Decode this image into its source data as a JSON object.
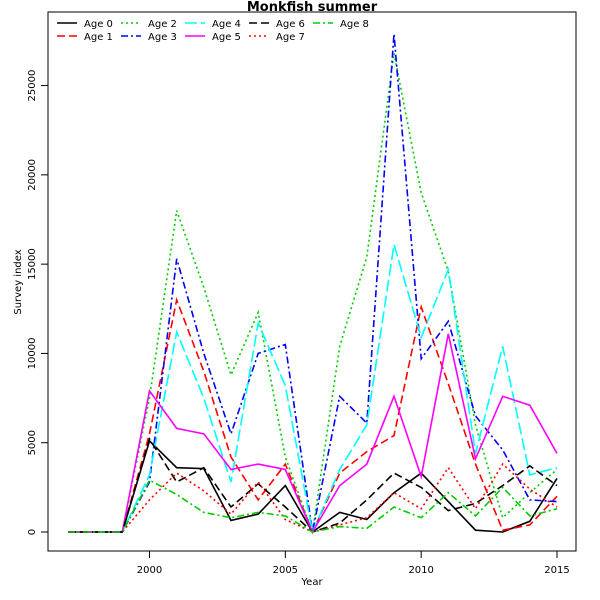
{
  "chart_data": {
    "type": "line",
    "title": "Monkfish summer",
    "xlabel": "Year",
    "ylabel": "Survey index",
    "x": [
      1997,
      1998,
      1999,
      2000,
      2001,
      2002,
      2003,
      2004,
      2005,
      2006,
      2007,
      2008,
      2009,
      2010,
      2011,
      2012,
      2013,
      2014,
      2015
    ],
    "xlim": [
      1997,
      2015
    ],
    "ylim": [
      0,
      28000
    ],
    "x_ticks": [
      "2000",
      "2005",
      "2010",
      "2015"
    ],
    "y_ticks": [
      "0",
      "5000",
      "10000",
      "15000",
      "20000",
      "25000"
    ],
    "legend_position": "top",
    "series": [
      {
        "name": "Age 0",
        "color": "#000000",
        "dash": "solid",
        "values": [
          0,
          0,
          0,
          5100,
          3600,
          3550,
          650,
          1000,
          2600,
          0,
          1100,
          700,
          2200,
          3300,
          1700,
          100,
          0,
          600,
          3000
        ]
      },
      {
        "name": "Age 1",
        "color": "#ff0000",
        "dash": "dashed",
        "values": [
          0,
          0,
          0,
          5500,
          13000,
          9000,
          4200,
          1800,
          3800,
          0,
          3300,
          4500,
          5400,
          12600,
          8300,
          3800,
          100,
          400,
          2000
        ]
      },
      {
        "name": "Age 2",
        "color": "#00cd00",
        "dash": "dotted",
        "values": [
          0,
          0,
          0,
          7500,
          18000,
          13700,
          8800,
          12300,
          4200,
          0,
          10400,
          15400,
          26800,
          19000,
          14600,
          6000,
          800,
          2200,
          3500
        ]
      },
      {
        "name": "Age 3",
        "color": "#0000ff",
        "dash": "dotdash",
        "values": [
          0,
          0,
          0,
          2800,
          15300,
          10000,
          5500,
          10000,
          10500,
          0,
          7600,
          6100,
          27900,
          9700,
          11800,
          6500,
          4600,
          1800,
          1700
        ]
      },
      {
        "name": "Age 4",
        "color": "#00ffff",
        "dash": "longdash",
        "values": [
          0,
          0,
          0,
          3200,
          11200,
          7500,
          2800,
          11700,
          8200,
          0,
          3500,
          6000,
          16100,
          10900,
          14700,
          4400,
          10400,
          3200,
          3600
        ]
      },
      {
        "name": "Age 5",
        "color": "#ff00ff",
        "dash": "solid",
        "values": [
          0,
          0,
          0,
          7900,
          5800,
          5500,
          3500,
          3800,
          3500,
          0,
          2600,
          3800,
          7600,
          3100,
          11100,
          4100,
          7600,
          7100,
          4400
        ]
      },
      {
        "name": "Age 6",
        "color": "#000000",
        "dash": "dashed",
        "values": [
          0,
          0,
          0,
          5200,
          2800,
          3600,
          1400,
          2700,
          1400,
          0,
          500,
          1800,
          3300,
          2500,
          1200,
          1600,
          2600,
          3700,
          2600
        ]
      },
      {
        "name": "Age 7",
        "color": "#ff0000",
        "dash": "dotted",
        "values": [
          0,
          0,
          0,
          1800,
          3300,
          2300,
          1000,
          2800,
          700,
          0,
          400,
          800,
          2200,
          1300,
          3600,
          1300,
          3800,
          2400,
          1400
        ]
      },
      {
        "name": "Age 8",
        "color": "#00cd00",
        "dash": "dotdash",
        "values": [
          0,
          0,
          0,
          2900,
          2100,
          1100,
          800,
          1100,
          900,
          0,
          300,
          200,
          1400,
          800,
          2200,
          900,
          2500,
          900,
          1300
        ]
      }
    ]
  }
}
